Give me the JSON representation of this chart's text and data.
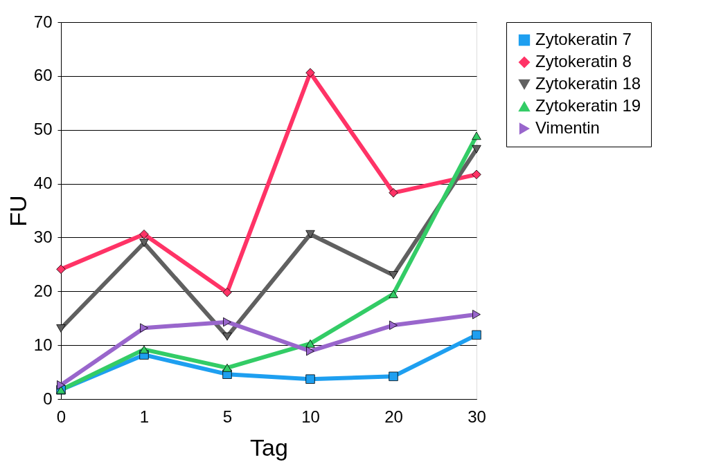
{
  "chart_data": {
    "type": "line",
    "xlabel": "Tag",
    "ylabel": "FU",
    "categories": [
      "0",
      "1",
      "5",
      "10",
      "20",
      "30"
    ],
    "ylim": [
      0,
      70
    ],
    "yticks": [
      0,
      10,
      20,
      30,
      40,
      50,
      60,
      70
    ],
    "grid": "y",
    "legend": "right",
    "line_style": "solid",
    "series": [
      {
        "name": "Zytokeratin 7",
        "color": "#1e9ff0",
        "marker": "square",
        "values": [
          1.7,
          8.2,
          4.6,
          3.7,
          4.2,
          11.9
        ]
      },
      {
        "name": "Zytokeratin 8",
        "color": "#ff3366",
        "marker": "diamond",
        "values": [
          24.1,
          30.6,
          19.8,
          60.6,
          38.3,
          41.7
        ]
      },
      {
        "name": "Zytokeratin 18",
        "color": "#606060",
        "marker": "triangle-down",
        "values": [
          13.1,
          29.0,
          11.6,
          30.6,
          23.0,
          46.4
        ]
      },
      {
        "name": "Zytokeratin 19",
        "color": "#33cc66",
        "marker": "triangle-up",
        "values": [
          1.7,
          9.2,
          5.8,
          10.3,
          19.5,
          48.9
        ]
      },
      {
        "name": "Vimentin",
        "color": "#9966cc",
        "marker": "triangle-right",
        "values": [
          2.6,
          13.2,
          14.3,
          8.9,
          13.7,
          15.7
        ]
      }
    ]
  }
}
